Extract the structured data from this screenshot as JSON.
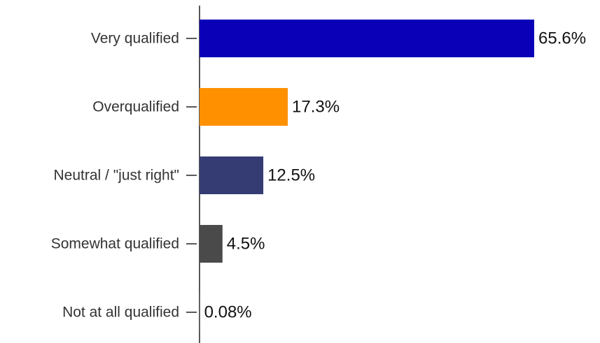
{
  "chart_data": {
    "type": "bar",
    "orientation": "horizontal",
    "categories": [
      "Very qualified",
      "Overqualified",
      "Neutral / \"just right\"",
      "Somewhat qualified",
      "Not at all qualified"
    ],
    "values": [
      65.6,
      17.3,
      12.5,
      4.5,
      0.08
    ],
    "value_labels": [
      "65.6%",
      "17.3%",
      "12.5%",
      "4.5%",
      "0.08%"
    ],
    "colors": [
      "#0a00b8",
      "#ff9100",
      "#353c74",
      "#4a4a4a",
      "#4a4a4a"
    ]
  }
}
